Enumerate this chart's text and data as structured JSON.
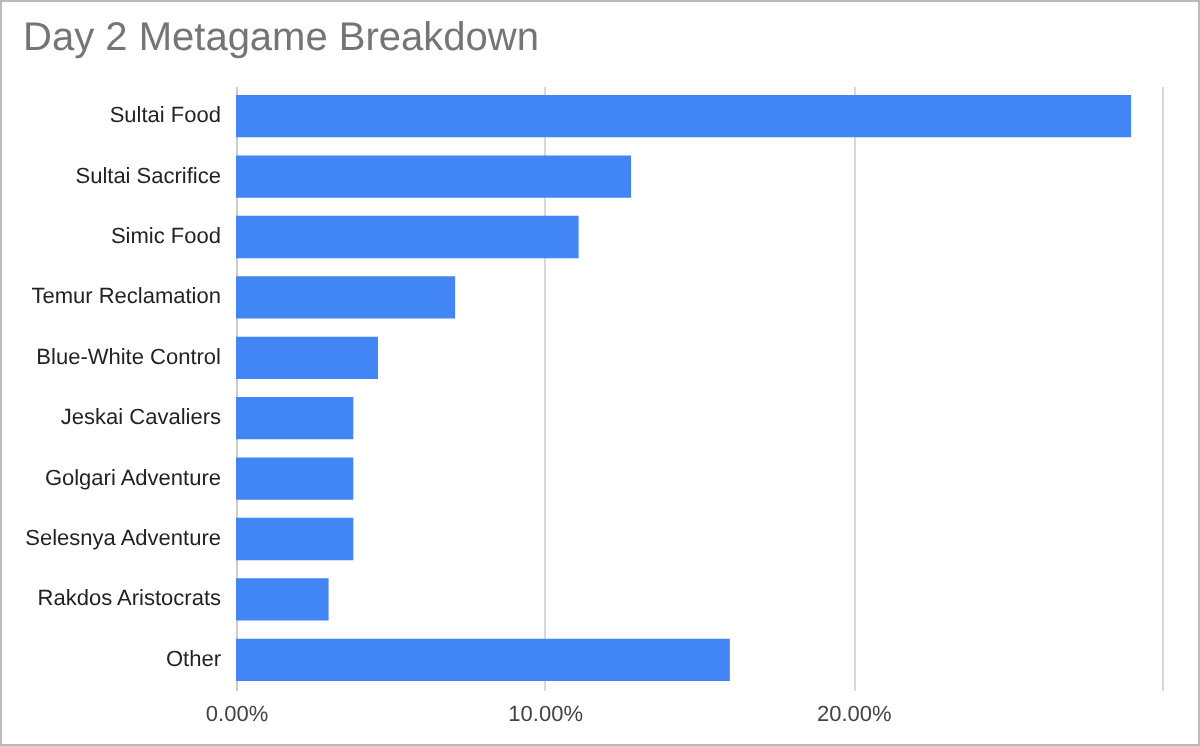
{
  "chart_data": {
    "type": "bar",
    "orientation": "horizontal",
    "title": "Day 2 Metagame Breakdown",
    "categories": [
      "Sultai Food",
      "Sultai Sacrifice",
      "Simic Food",
      "Temur Reclamation",
      "Blue-White Control",
      "Jeskai Cavaliers",
      "Golgari Adventure",
      "Selesnya Adventure",
      "Rakdos Aristocrats",
      "Other"
    ],
    "values": [
      29.0,
      12.8,
      11.1,
      7.1,
      4.6,
      3.8,
      3.8,
      3.8,
      3.0,
      16.0
    ],
    "color": "#4285f4",
    "xlim": [
      0,
      30
    ],
    "xticks": [
      {
        "value": 0,
        "label": "0.00%"
      },
      {
        "value": 10,
        "label": "10.00%"
      },
      {
        "value": 20,
        "label": "20.00%"
      },
      {
        "value": 30,
        "label": null
      }
    ],
    "grid": "x"
  }
}
